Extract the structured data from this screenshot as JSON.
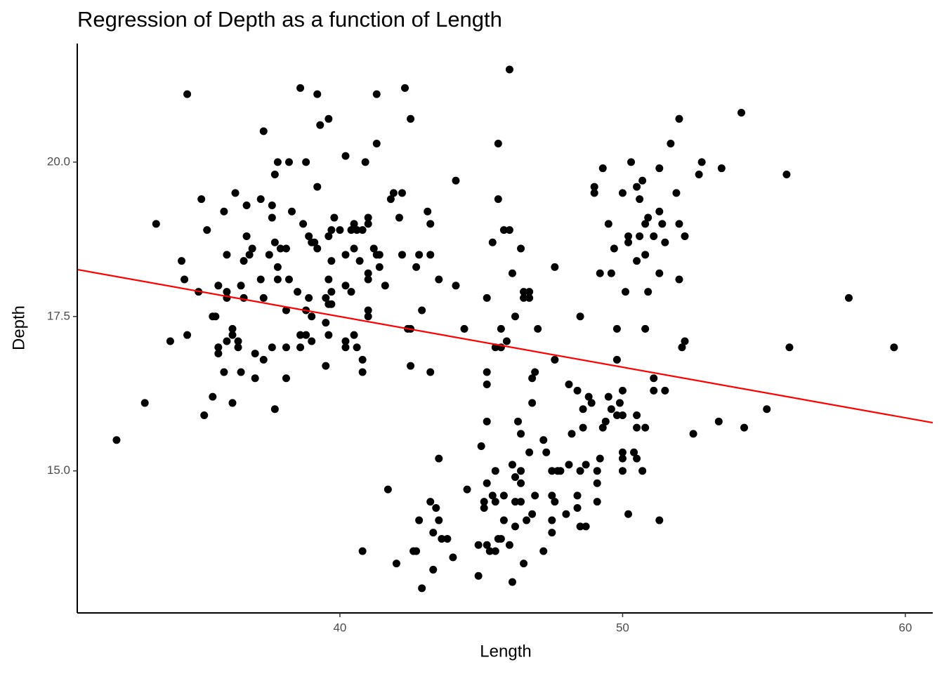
{
  "chart_data": {
    "type": "scatter",
    "title": "Regression of Depth as a function of Length",
    "x_label": "Length",
    "y_label": "Depth",
    "color": "#000000",
    "x": [
      32.1,
      33.1,
      33.5,
      34.0,
      34.4,
      34.5,
      34.6,
      34.6,
      35.0,
      35.1,
      35.2,
      35.3,
      35.5,
      35.5,
      35.6,
      35.7,
      35.7,
      35.7,
      35.9,
      35.9,
      36.0,
      36.0,
      36.0,
      36.0,
      36.2,
      36.2,
      36.2,
      36.3,
      36.4,
      36.4,
      36.5,
      36.5,
      36.6,
      36.6,
      36.7,
      36.7,
      36.8,
      36.9,
      37.0,
      37.0,
      37.2,
      37.2,
      37.3,
      37.3,
      37.3,
      37.5,
      37.6,
      37.6,
      37.6,
      37.7,
      37.7,
      37.7,
      37.8,
      37.8,
      37.8,
      37.9,
      38.1,
      38.1,
      38.1,
      38.1,
      38.2,
      38.2,
      38.3,
      38.5,
      38.6,
      38.6,
      38.6,
      38.7,
      38.8,
      38.8,
      38.8,
      38.9,
      38.9,
      39.0,
      39.0,
      39.0,
      39.1,
      39.2,
      39.2,
      39.2,
      39.3,
      39.5,
      39.5,
      39.5,
      39.6,
      39.6,
      39.6,
      39.6,
      39.7,
      39.6,
      39.7,
      39.7,
      39.7,
      39.8,
      40.0,
      40.2,
      40.2,
      40.2,
      40.2,
      40.2,
      40.4,
      40.4,
      40.5,
      40.5,
      40.5,
      40.6,
      40.6,
      40.7,
      40.8,
      40.8,
      40.8,
      40.8,
      40.9,
      41.0,
      41.0,
      41.0,
      41.0,
      41.0,
      41.0,
      41.2,
      41.3,
      41.3,
      41.3,
      41.4,
      41.4,
      41.6,
      41.7,
      41.8,
      41.9,
      42.2,
      42.0,
      42.1,
      42.2,
      42.3,
      42.4,
      42.5,
      42.5,
      42.5,
      42.6,
      42.7,
      42.7,
      42.8,
      42.8,
      42.9,
      42.9,
      43.1,
      43.2,
      43.2,
      43.2,
      43.2,
      43.3,
      43.3,
      43.4,
      43.5,
      43.5,
      43.5,
      43.6,
      43.8,
      44.0,
      44.1,
      44.1,
      44.4,
      44.5,
      44.9,
      45.2,
      44.9,
      45.0,
      45.1,
      45.1,
      45.2,
      45.2,
      45.2,
      45.2,
      45.2,
      45.3,
      45.4,
      45.4,
      45.5,
      45.7,
      45.5,
      45.5,
      45.5,
      45.6,
      45.7,
      45.6,
      45.6,
      45.7,
      45.8,
      46.0,
      45.8,
      45.8,
      45.9,
      46.0,
      46.0,
      46.1,
      46.1,
      46.1,
      46.2,
      46.2,
      46.2,
      46.2,
      46.3,
      46.4,
      46.4,
      46.4,
      46.4,
      46.4,
      46.5,
      46.5,
      46.5,
      46.6,
      46.7,
      46.7,
      46.7,
      46.8,
      46.8,
      46.8,
      46.9,
      46.9,
      47.0,
      47.2,
      47.2,
      47.3,
      47.5,
      47.7,
      47.8,
      47.5,
      47.5,
      47.5,
      47.6,
      47.6,
      47.6,
      48.0,
      48.1,
      48.1,
      48.2,
      48.4,
      48.4,
      48.4,
      48.5,
      48.5,
      48.5,
      48.7,
      48.6,
      48.6,
      48.7,
      48.8,
      48.9,
      49.0,
      49.0,
      49.1,
      49.1,
      49.1,
      49.2,
      49.2,
      49.3,
      49.3,
      49.4,
      49.5,
      49.5,
      49.6,
      49.6,
      49.7,
      49.8,
      49.8,
      49.8,
      49.9,
      50.0,
      50.0,
      50.0,
      50.0,
      50.0,
      50.0,
      50.1,
      50.2,
      50.2,
      50.2,
      50.3,
      50.4,
      50.5,
      50.5,
      50.5,
      50.5,
      50.5,
      50.6,
      50.6,
      50.7,
      50.7,
      50.8,
      50.8,
      50.8,
      50.8,
      50.9,
      50.9,
      51.1,
      51.1,
      51.1,
      51.3,
      51.3,
      51.3,
      51.3,
      51.4,
      51.5,
      51.5,
      51.7,
      51.9,
      52.0,
      52.0,
      52.0,
      52.1,
      52.2,
      52.2,
      52.5,
      52.7,
      52.8,
      53.4,
      53.5,
      54.2,
      54.3,
      55.1,
      55.8,
      55.9,
      58.0,
      59.6
    ],
    "values": [
      15.5,
      16.1,
      19.0,
      17.1,
      18.4,
      18.1,
      21.1,
      17.2,
      17.9,
      19.4,
      15.9,
      18.9,
      16.2,
      17.5,
      17.5,
      17.0,
      16.9,
      18.0,
      19.2,
      16.6,
      17.1,
      18.5,
      17.9,
      17.8,
      17.3,
      17.2,
      16.1,
      19.5,
      17.1,
      17.0,
      18.0,
      16.6,
      17.8,
      18.4,
      19.3,
      18.8,
      18.5,
      18.6,
      16.5,
      16.9,
      18.1,
      19.4,
      20.5,
      16.8,
      17.8,
      18.5,
      17.0,
      19.1,
      19.3,
      19.8,
      18.7,
      16.0,
      20.0,
      18.3,
      18.1,
      18.6,
      18.6,
      17.6,
      17.0,
      16.5,
      20.0,
      18.1,
      19.2,
      17.9,
      21.2,
      17.2,
      17.0,
      19.0,
      20.0,
      17.6,
      17.2,
      17.8,
      18.8,
      18.7,
      17.5,
      17.1,
      18.7,
      18.6,
      21.1,
      19.6,
      20.6,
      17.8,
      17.4,
      16.7,
      20.7,
      18.8,
      18.1,
      17.7,
      17.7,
      17.2,
      17.9,
      18.4,
      18.9,
      19.1,
      18.9,
      20.1,
      17.1,
      17.0,
      18.5,
      18.0,
      18.9,
      17.9,
      19.0,
      18.6,
      17.2,
      18.9,
      17.0,
      18.4,
      18.9,
      16.8,
      16.6,
      13.7,
      20.0,
      19.1,
      19.0,
      18.2,
      18.1,
      17.6,
      17.5,
      18.6,
      18.5,
      21.1,
      20.3,
      18.5,
      18.3,
      18.0,
      14.7,
      19.4,
      19.5,
      19.5,
      13.5,
      19.1,
      18.5,
      21.2,
      17.3,
      17.3,
      16.7,
      20.7,
      13.7,
      13.7,
      18.3,
      14.2,
      18.5,
      17.6,
      13.1,
      19.2,
      19.0,
      18.5,
      16.6,
      14.5,
      13.4,
      14.0,
      14.4,
      18.1,
      14.2,
      15.2,
      13.9,
      13.9,
      13.6,
      18.0,
      19.7,
      17.3,
      14.7,
      13.8,
      13.8,
      13.3,
      15.4,
      14.5,
      14.4,
      17.8,
      16.6,
      16.4,
      15.8,
      14.8,
      13.7,
      18.7,
      14.6,
      17.0,
      17.0,
      15.0,
      14.5,
      13.7,
      13.9,
      13.9,
      19.4,
      20.3,
      17.3,
      18.9,
      18.9,
      14.6,
      14.2,
      17.1,
      13.8,
      21.5,
      18.2,
      15.1,
      13.2,
      14.9,
      17.5,
      14.5,
      14.1,
      15.8,
      18.6,
      15.6,
      15.0,
      14.8,
      14.5,
      17.8,
      17.9,
      13.5,
      14.2,
      17.8,
      17.9,
      15.3,
      16.5,
      16.1,
      14.3,
      16.6,
      14.6,
      17.3,
      15.5,
      13.7,
      15.3,
      15.0,
      15.0,
      15.0,
      14.2,
      14.0,
      14.6,
      16.8,
      18.3,
      14.5,
      14.3,
      16.4,
      15.1,
      15.6,
      14.6,
      14.4,
      16.3,
      17.5,
      15.0,
      14.1,
      14.1,
      16.0,
      15.7,
      15.1,
      16.2,
      16.1,
      19.6,
      19.5,
      14.5,
      14.8,
      15.0,
      18.2,
      15.2,
      15.7,
      19.9,
      15.8,
      19.0,
      16.2,
      18.2,
      16.0,
      18.6,
      17.3,
      16.8,
      15.9,
      16.1,
      16.3,
      19.5,
      15.9,
      15.3,
      15.2,
      15.0,
      17.9,
      18.8,
      18.7,
      14.3,
      20.0,
      15.3,
      15.2,
      15.7,
      15.9,
      19.6,
      18.4,
      19.4,
      18.8,
      19.7,
      15.0,
      18.5,
      17.3,
      15.7,
      19.0,
      19.1,
      17.9,
      16.5,
      16.3,
      18.8,
      14.2,
      18.2,
      19.2,
      19.9,
      19.0,
      16.3,
      18.7,
      20.3,
      19.5,
      20.7,
      19.0,
      18.1,
      17.0,
      17.1,
      18.8,
      15.6,
      19.8,
      20.0,
      15.8,
      19.9,
      20.8,
      15.7,
      16.0,
      19.8,
      17.0,
      17.8,
      17.0
    ],
    "regression": {
      "x": [
        30.71,
        60.97
      ],
      "values": [
        18.26,
        15.78
      ],
      "color": "#ff0000"
    },
    "xlim": [
      30.71,
      60.97
    ],
    "ylim": [
      12.7,
      21.92
    ],
    "xticks": [
      40,
      50,
      60
    ],
    "yticks": [
      {
        "value": 15,
        "label": "15.0"
      },
      17.5,
      {
        "value": 20,
        "label": "20.0"
      }
    ],
    "grid": false
  }
}
